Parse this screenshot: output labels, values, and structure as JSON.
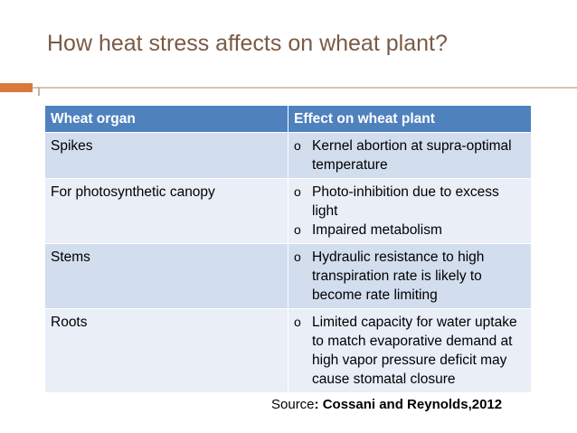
{
  "slide": {
    "title": "How heat stress affects on wheat plant?"
  },
  "table": {
    "headers": [
      "Wheat organ",
      "Effect on wheat plant"
    ],
    "rows": [
      {
        "organ": "Spikes",
        "effects": [
          "Kernel abortion at supra-optimal temperature"
        ]
      },
      {
        "organ": "For photosynthetic canopy",
        "effects": [
          "Photo-inhibition due to excess light",
          "Impaired metabolism"
        ]
      },
      {
        "organ": "Stems",
        "effects": [
          "Hydraulic resistance to high transpiration rate is likely to become rate limiting"
        ]
      },
      {
        "organ": "Roots",
        "effects": [
          "Limited capacity for water uptake to match evaporative demand at high vapor pressure deficit may cause stomatal closure"
        ]
      }
    ],
    "bullet_symbol": "o"
  },
  "source": {
    "label": "Source",
    "citation": ": Cossani and Reynolds,2012"
  },
  "colors": {
    "title": "#7a5a45",
    "accent": "#d97a3d",
    "header_fill": "#4f81bd",
    "row_dark": "#d2ddee",
    "row_light": "#e9eef7"
  }
}
